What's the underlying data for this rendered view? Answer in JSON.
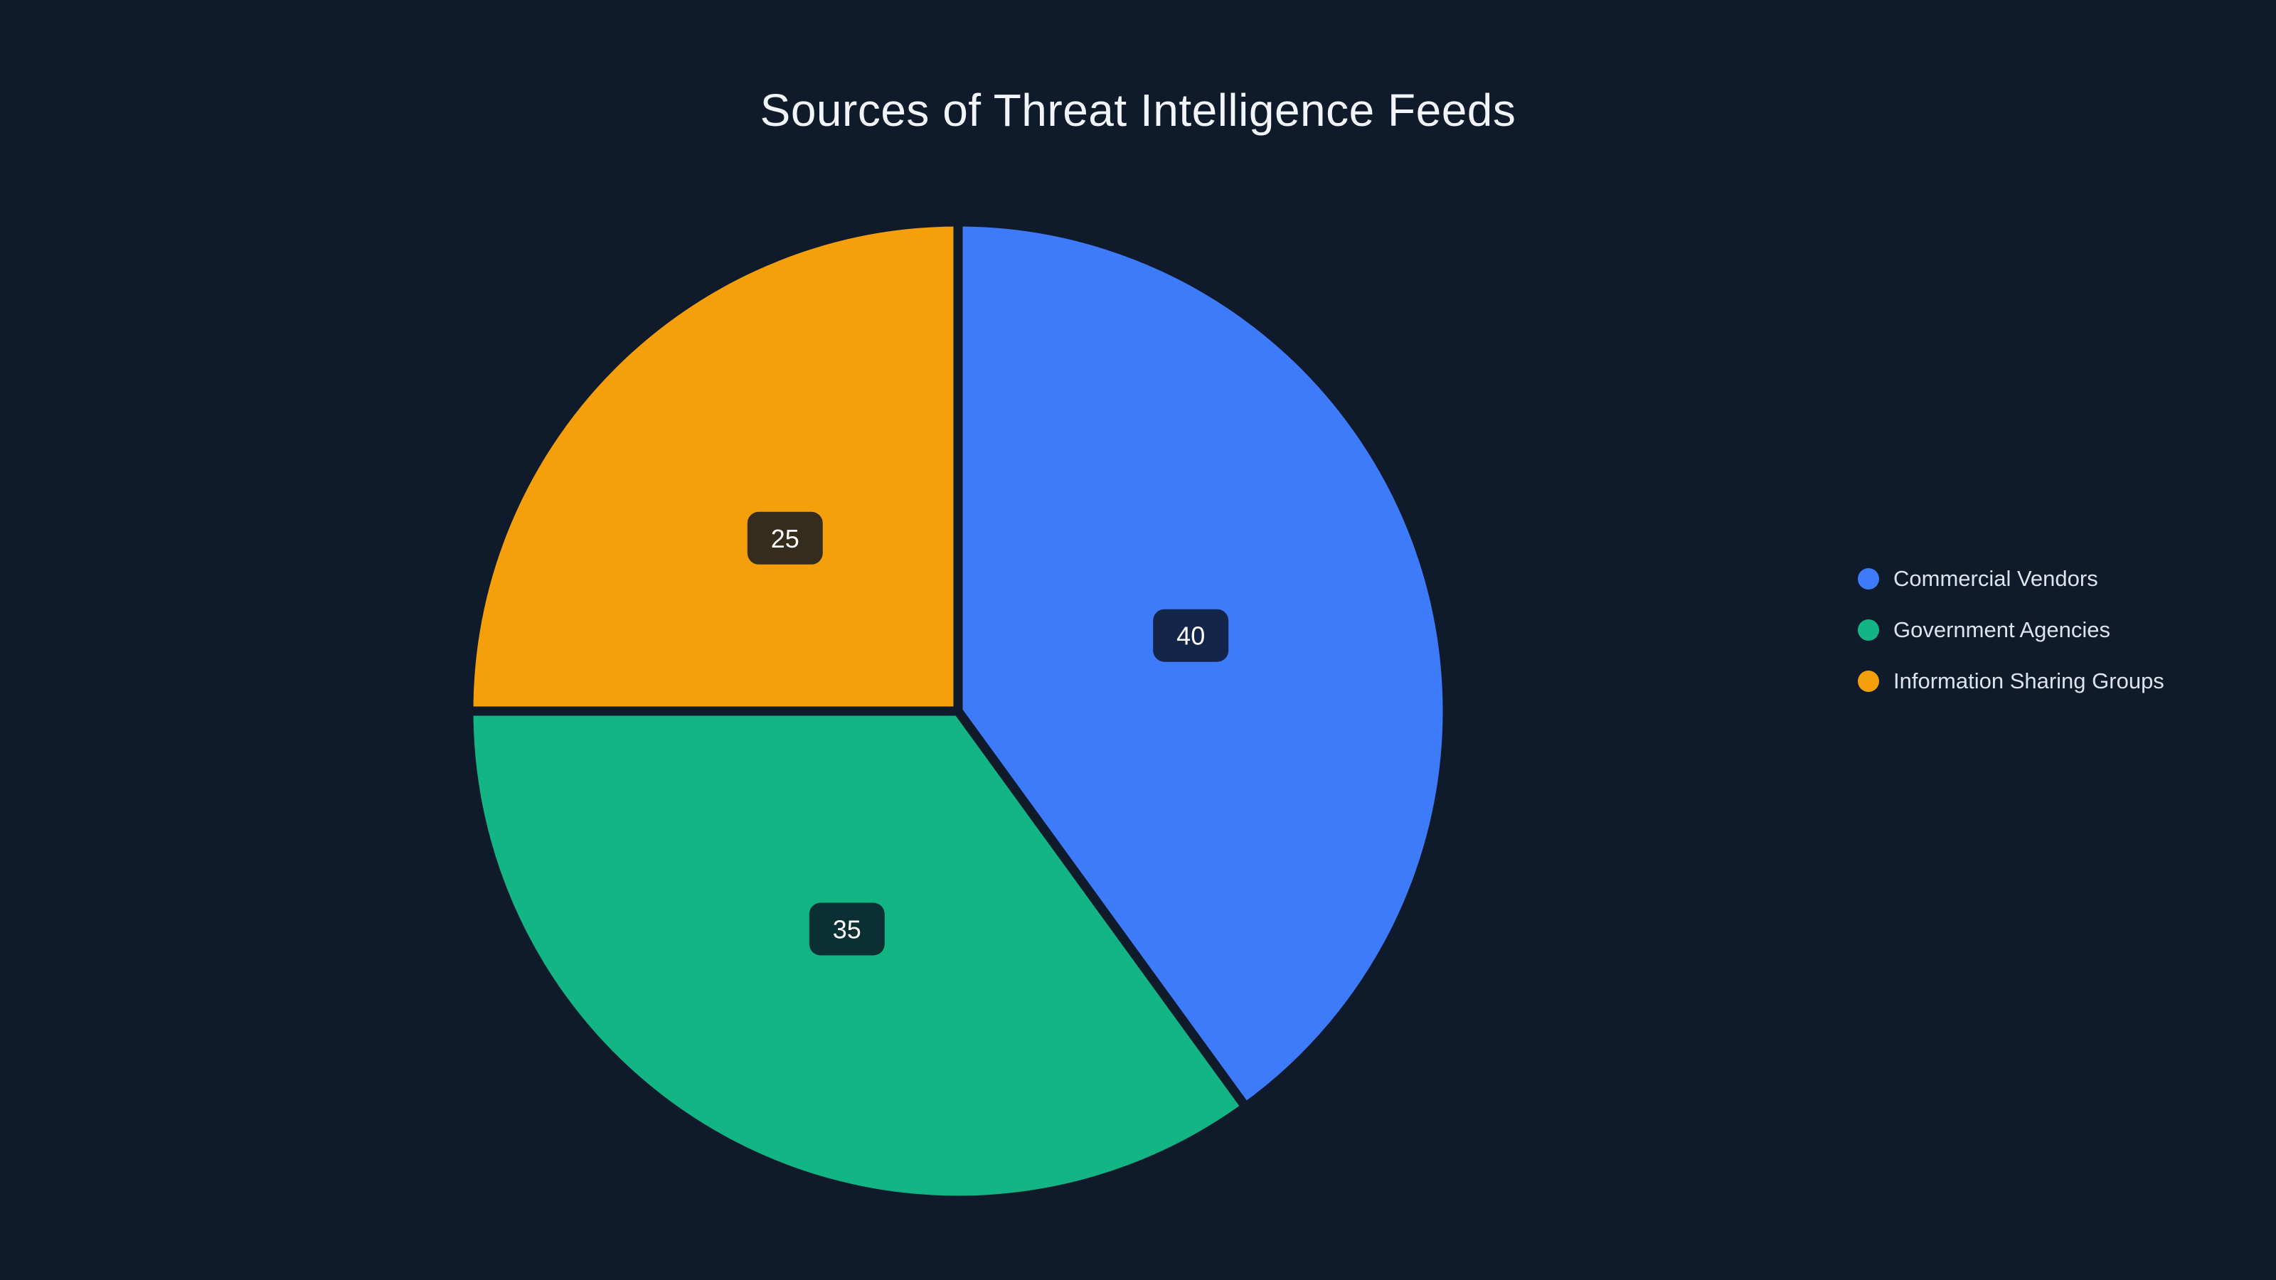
{
  "title": "Sources of Threat Intelligence Feeds",
  "colors": {
    "background": "#0f1a2b",
    "title_text": "#f1f5f9",
    "legend_text": "#dde3ec",
    "label_box": "rgba(10,18,33,0.82)",
    "label_text": "#ffffff"
  },
  "chart_data": {
    "type": "pie",
    "title": "Sources of Threat Intelligence Feeds",
    "labels": [
      "Commercial Vendors",
      "Government Agencies",
      "Information Sharing Groups"
    ],
    "values": [
      40,
      35,
      25
    ],
    "value_labels": [
      "40",
      "35",
      "25"
    ],
    "colors": [
      "#3e7bfa",
      "#12b583",
      "#f59f0a"
    ],
    "start_angle_deg": 0,
    "direction": "clockwise",
    "inner_radius": 0,
    "grid": false,
    "legend_position": "right"
  },
  "legend": {
    "items": [
      {
        "label": "Commercial Vendors",
        "color": "#3e7bfa"
      },
      {
        "label": "Government Agencies",
        "color": "#12b583"
      },
      {
        "label": "Information Sharing Groups",
        "color": "#f59f0a"
      }
    ]
  }
}
